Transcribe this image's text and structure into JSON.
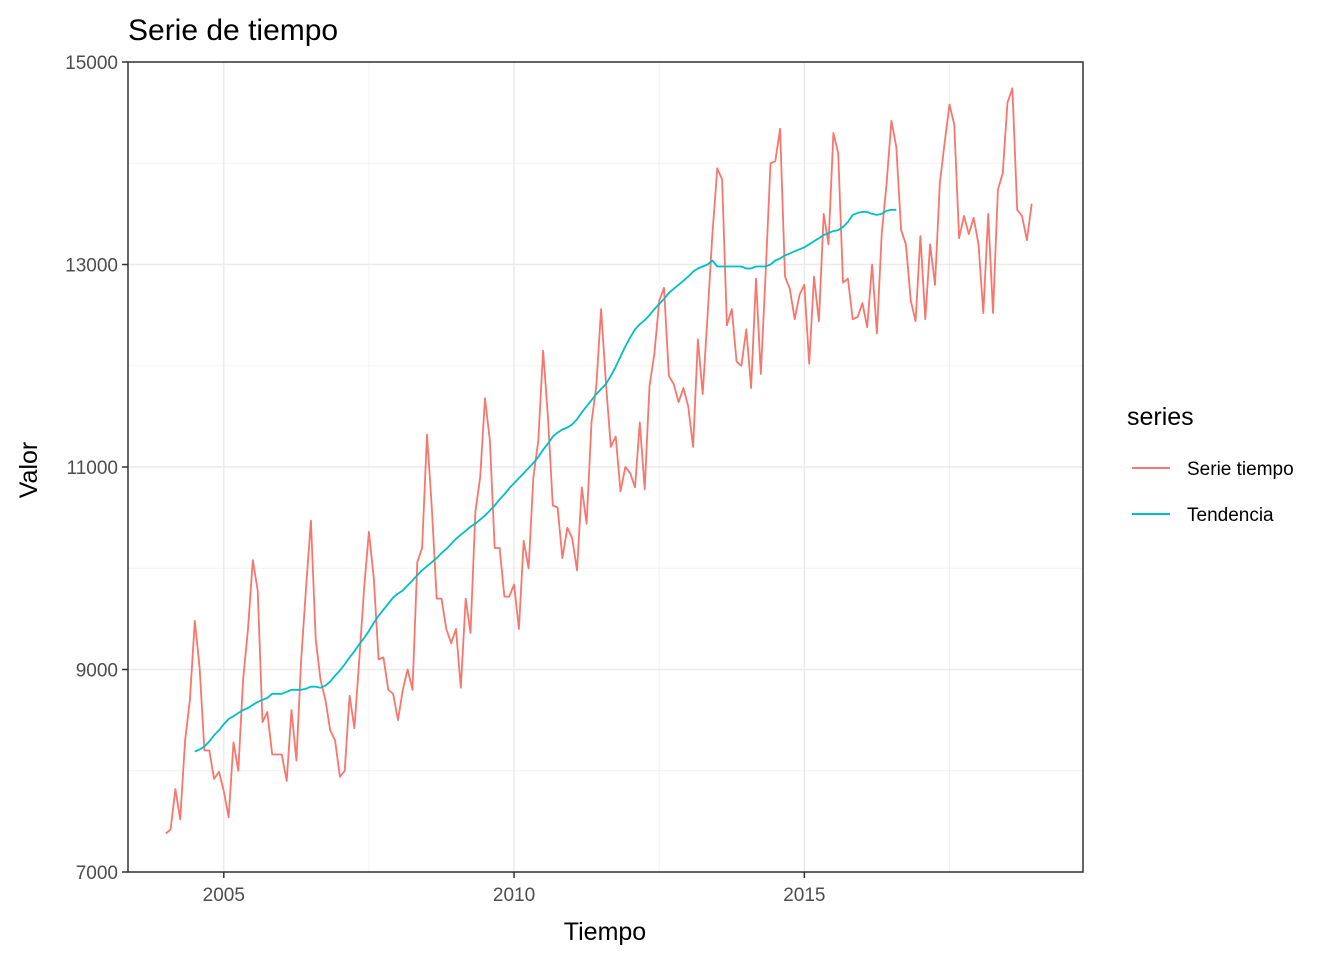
{
  "chart_data": {
    "type": "line",
    "title": "Serie de tiempo",
    "xlabel": "Tiempo",
    "ylabel": "Valor",
    "xlim": [
      2003.35,
      2019.8
    ],
    "ylim": [
      7000,
      15000
    ],
    "x_ticks": [
      2005,
      2010,
      2015
    ],
    "x_tick_labels": [
      "2005",
      "2010",
      "2015"
    ],
    "y_ticks": [
      7000,
      9000,
      11000,
      13000,
      15000
    ],
    "y_tick_labels": [
      "7000",
      "9000",
      "11000",
      "13000",
      "15000"
    ],
    "grid": true,
    "legend": {
      "title": "series",
      "position": "right"
    },
    "series": [
      {
        "name": "Serie tiempo",
        "color": "#F8766D",
        "start": 2004.0,
        "step": 0.0833333,
        "values": [
          7380,
          7420,
          7820,
          7520,
          8300,
          8700,
          9480,
          9020,
          8200,
          8200,
          7920,
          7990,
          7800,
          7540,
          8280,
          8000,
          8900,
          9400,
          10080,
          9780,
          8480,
          8580,
          8160,
          8160,
          8160,
          7900,
          8600,
          8100,
          9100,
          9800,
          10470,
          9300,
          8900,
          8700,
          8400,
          8300,
          7940,
          8000,
          8740,
          8420,
          9100,
          9800,
          10360,
          9900,
          9100,
          9120,
          8800,
          8760,
          8500,
          8800,
          9000,
          8800,
          10060,
          10200,
          11320,
          10600,
          9700,
          9700,
          9400,
          9260,
          9400,
          8820,
          9700,
          9360,
          10560,
          10900,
          11680,
          11260,
          10200,
          10200,
          9720,
          9720,
          9840,
          9400,
          10270,
          10000,
          10900,
          11260,
          12150,
          11500,
          10620,
          10600,
          10100,
          10400,
          10300,
          9980,
          10800,
          10440,
          11440,
          11800,
          12560,
          11820,
          11200,
          11300,
          10760,
          11000,
          10940,
          10800,
          11440,
          10780,
          11800,
          12120,
          12640,
          12770,
          11900,
          11820,
          11640,
          11780,
          11600,
          11200,
          12260,
          11720,
          12500,
          13300,
          13950,
          13840,
          12400,
          12560,
          12040,
          12000,
          12360,
          11780,
          12860,
          11920,
          12900,
          14000,
          14020,
          14340,
          12880,
          12760,
          12460,
          12700,
          12800,
          12020,
          12880,
          12440,
          13500,
          13200,
          14300,
          14100,
          12820,
          12860,
          12460,
          12480,
          12620,
          12380,
          13000,
          12320,
          13300,
          13800,
          14420,
          14160,
          13340,
          13200,
          12640,
          12440,
          13280,
          12460,
          13200,
          12800,
          13800,
          14200,
          14580,
          14380,
          13260,
          13480,
          13300,
          13460,
          13200,
          12520,
          13500,
          12520,
          13740,
          13900,
          14600,
          14740,
          13540,
          13480,
          13240,
          13600
        ]
      },
      {
        "name": "Tendencia",
        "color": "#00BFC4",
        "start": 2004.5,
        "step": 0.0833333,
        "values": [
          8190,
          8210,
          8240,
          8290,
          8350,
          8400,
          8460,
          8510,
          8540,
          8570,
          8600,
          8620,
          8650,
          8680,
          8700,
          8720,
          8760,
          8760,
          8760,
          8780,
          8800,
          8800,
          8800,
          8810,
          8830,
          8830,
          8820,
          8840,
          8880,
          8940,
          8990,
          9050,
          9120,
          9180,
          9250,
          9310,
          9380,
          9460,
          9530,
          9590,
          9650,
          9710,
          9750,
          9780,
          9830,
          9880,
          9930,
          9980,
          10020,
          10060,
          10100,
          10150,
          10190,
          10240,
          10290,
          10330,
          10370,
          10410,
          10440,
          10480,
          10520,
          10570,
          10620,
          10680,
          10730,
          10790,
          10840,
          10890,
          10940,
          10990,
          11040,
          11100,
          11170,
          11230,
          11300,
          11340,
          11370,
          11390,
          11420,
          11470,
          11540,
          11600,
          11660,
          11720,
          11770,
          11820,
          11900,
          11990,
          12090,
          12190,
          12280,
          12360,
          12410,
          12450,
          12500,
          12560,
          12610,
          12660,
          12720,
          12760,
          12800,
          12840,
          12880,
          12930,
          12960,
          12980,
          13000,
          13040,
          12980,
          12980,
          12980,
          12980,
          12980,
          12980,
          12960,
          12960,
          12980,
          12980,
          12980,
          13000,
          13040,
          13060,
          13090,
          13110,
          13130,
          13150,
          13170,
          13200,
          13230,
          13260,
          13290,
          13310,
          13330,
          13340,
          13370,
          13420,
          13490,
          13510,
          13520,
          13520,
          13500,
          13490,
          13500,
          13530,
          13540,
          13540
        ]
      }
    ]
  }
}
